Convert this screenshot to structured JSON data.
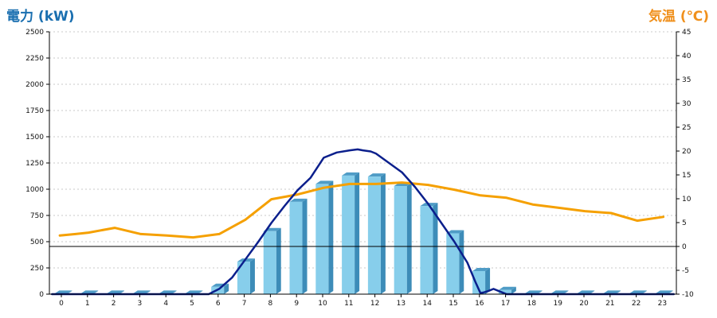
{
  "chart_data": {
    "type": "bar",
    "title": "",
    "xlabel": "",
    "categories": [
      "0",
      "1",
      "2",
      "3",
      "4",
      "5",
      "6",
      "7",
      "8",
      "9",
      "10",
      "11",
      "12",
      "13",
      "14",
      "15",
      "16",
      "17",
      "18",
      "19",
      "20",
      "21",
      "22",
      "23"
    ],
    "y_left": {
      "label": "電力 (kW)",
      "ylim": [
        0,
        2500
      ],
      "ticks": [
        "0",
        "250",
        "500",
        "750",
        "1000",
        "1250",
        "1500",
        "1750",
        "2000",
        "2250",
        "2500"
      ]
    },
    "y_right": {
      "label": "気温 (℃)",
      "ylim": [
        -10,
        45
      ],
      "ticks": [
        "-10",
        "-5",
        "0",
        "5",
        "10",
        "15",
        "20",
        "25",
        "30",
        "35",
        "40",
        "45"
      ]
    },
    "grid": true,
    "series": [
      {
        "type": "bar",
        "axis": "left",
        "color": "#87ceeb",
        "values": [
          5,
          5,
          5,
          5,
          5,
          5,
          70,
          310,
          600,
          880,
          1050,
          1130,
          1120,
          1030,
          840,
          580,
          220,
          40,
          5,
          5,
          5,
          5,
          5,
          5
        ]
      },
      {
        "type": "line",
        "axis": "right",
        "color": "#f5a000",
        "x": [
          -0.1,
          0.5,
          1,
          2,
          3,
          4,
          5,
          6,
          7,
          8,
          9,
          10,
          11,
          12,
          13,
          14,
          15,
          16,
          17,
          18,
          19,
          20,
          21,
          22,
          23
        ],
        "values": [
          2.3,
          2.6,
          2.9,
          3.9,
          2.6,
          2.3,
          1.9,
          2.6,
          5.6,
          9.9,
          10.9,
          12.3,
          13.1,
          13.1,
          13.4,
          12.9,
          11.9,
          10.7,
          10.2,
          8.8,
          8.1,
          7.4,
          7.0,
          5.4,
          6.2
        ]
      },
      {
        "type": "line",
        "axis": "left",
        "color": "#0b1f8c",
        "x": [
          -0.4,
          5.6,
          6,
          6.5,
          7,
          7.5,
          8,
          8.5,
          9,
          9.5,
          10,
          10.5,
          11,
          11.3,
          11.5,
          11.8,
          12,
          12.5,
          13,
          13.5,
          14,
          14.5,
          15,
          15.5,
          15.8,
          16,
          16.1,
          16.3,
          16.5,
          16.7,
          16.9,
          17,
          17.4,
          23.4
        ],
        "values": [
          0,
          0,
          50,
          160,
          330,
          500,
          680,
          840,
          990,
          1110,
          1300,
          1350,
          1370,
          1380,
          1370,
          1360,
          1340,
          1250,
          1160,
          1020,
          860,
          680,
          500,
          300,
          120,
          10,
          15,
          30,
          50,
          30,
          10,
          0,
          0,
          0
        ]
      }
    ]
  }
}
